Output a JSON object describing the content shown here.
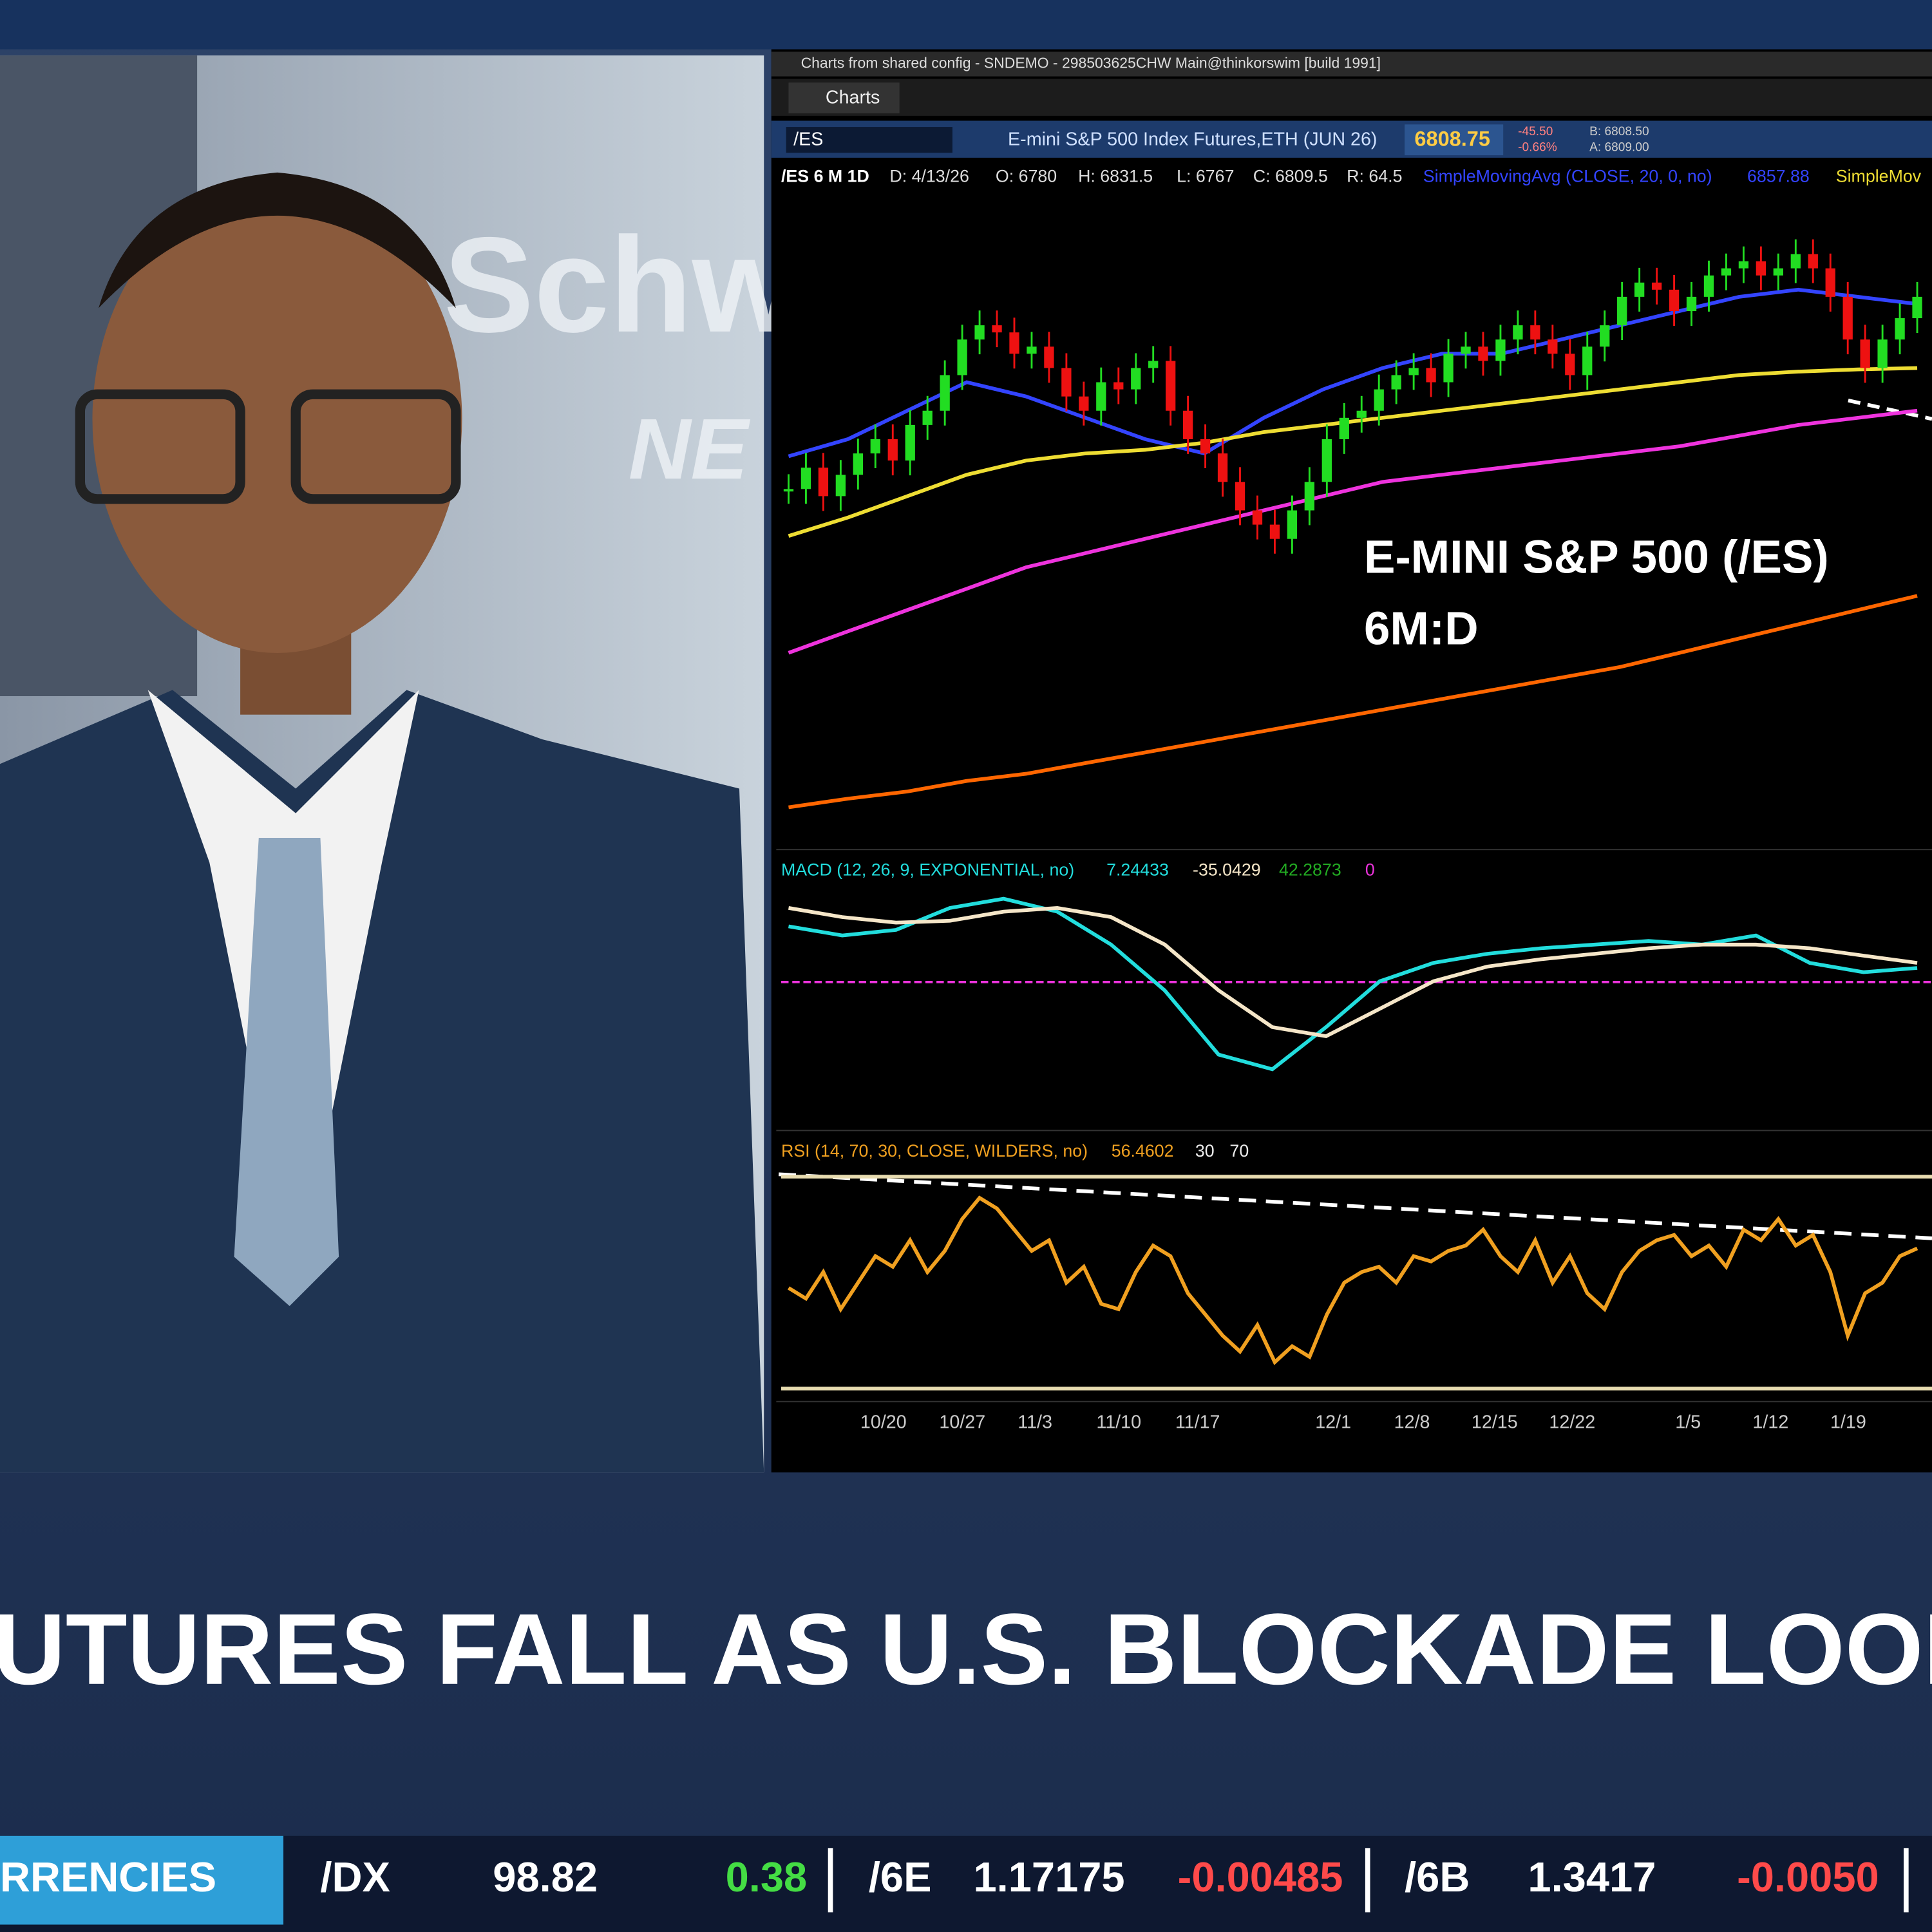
{
  "logo": {
    "brand": "Schw",
    "sub": "NE"
  },
  "window_title": "Charts from shared config - SNDEMO - 298503625CHW Main@thinkorswim [build 1991]",
  "tab": "Charts",
  "symbol_bar": {
    "symbol": "/ES",
    "description": "E-mini S&P 500 Index Futures,ETH (JUN 26)",
    "last": "6808.75",
    "change": "-45.50",
    "change_pct": "-0.66%",
    "bid": "B: 6808.50",
    "ask": "A: 6809.00"
  },
  "info_bar": [
    "/ES 6 M 1D",
    "D: 4/13/26",
    "O: 6780",
    "H: 6831.5",
    "L: 6767",
    "C: 6809.5",
    "R: 64.5",
    "SimpleMovingAvg (CLOSE, 20, 0, no)",
    "6857.88",
    "SimpleMov"
  ],
  "chart_data": [
    {
      "type": "candlestick",
      "title": "E-MINI S&P 500 (/ES)",
      "subtitle": "6M:D",
      "ylim": [
        6200,
        7100
      ],
      "up_color": "#22dd22",
      "down_color": "#ee1111",
      "values": [
        6690,
        6720,
        6680,
        6710,
        6740,
        6760,
        6730,
        6780,
        6800,
        6850,
        6900,
        6920,
        6910,
        6880,
        6890,
        6860,
        6820,
        6800,
        6840,
        6830,
        6860,
        6870,
        6800,
        6760,
        6740,
        6700,
        6660,
        6640,
        6620,
        6660,
        6700,
        6760,
        6790,
        6800,
        6830,
        6850,
        6860,
        6840,
        6880,
        6890,
        6870,
        6900,
        6920,
        6900,
        6880,
        6850,
        6890,
        6920,
        6960,
        6980,
        6970,
        6940,
        6960,
        6990,
        7000,
        7010,
        6990,
        7000,
        7020,
        7000,
        6960,
        6900,
        6860,
        6900,
        6930,
        6960
      ],
      "series": [
        {
          "color": "#3344ff",
          "values": [
            6736,
            6760,
            6800,
            6840,
            6820,
            6790,
            6760,
            6740,
            6790,
            6830,
            6860,
            6880,
            6880,
            6900,
            6920,
            6940,
            6960,
            6970,
            6960,
            6950
          ]
        },
        {
          "color": "#eedd33",
          "values": [
            6624,
            6650,
            6680,
            6710,
            6730,
            6740,
            6745,
            6755,
            6770,
            6780,
            6790,
            6800,
            6810,
            6820,
            6830,
            6840,
            6850,
            6855,
            6858,
            6860
          ]
        },
        {
          "color": "#ee33dd",
          "values": [
            6460,
            6490,
            6520,
            6550,
            6580,
            6600,
            6620,
            6640,
            6660,
            6680,
            6700,
            6710,
            6720,
            6730,
            6740,
            6750,
            6765,
            6780,
            6790,
            6800
          ]
        },
        {
          "color": "#ff6600",
          "values": [
            6243,
            6255,
            6265,
            6280,
            6290,
            6305,
            6320,
            6335,
            6350,
            6365,
            6380,
            6395,
            6410,
            6425,
            6440,
            6460,
            6480,
            6500,
            6520,
            6540
          ]
        }
      ],
      "x_labels": [
        "10/20",
        "10/27",
        "11/3",
        "11/10",
        "11/17",
        "12/1",
        "12/8",
        "12/15",
        "12/22",
        "1/5",
        "1/12",
        "1/19"
      ]
    },
    {
      "type": "line",
      "title": "MACD (12, 26, 9, EXPONENTIAL, no)",
      "readouts": [
        "7.24433",
        "-35.0429",
        "42.2873",
        "0"
      ],
      "ylim": [
        -75,
        50
      ],
      "series": [
        {
          "name": "Value",
          "color": "#22dddd",
          "values": [
            30,
            25,
            28,
            40,
            45,
            38,
            20,
            -5,
            -40,
            -48,
            -25,
            0,
            10,
            15,
            18,
            20,
            22,
            20,
            25,
            10,
            5,
            7.24
          ]
        },
        {
          "name": "Avg",
          "color": "#f5e6c8",
          "values": [
            40,
            35,
            32,
            33,
            38,
            40,
            35,
            20,
            -5,
            -25,
            -30,
            -15,
            0,
            8,
            12,
            15,
            18,
            20,
            20,
            18,
            14,
            10
          ]
        }
      ]
    },
    {
      "type": "line",
      "title": "RSI (14, 70, 30, CLOSE, WILDERS, no)",
      "readouts": [
        "56.4602",
        "30",
        "70"
      ],
      "ylim": [
        30,
        70
      ],
      "yticks": [
        30,
        70
      ],
      "color": "#f0a020",
      "values": [
        49,
        47,
        52,
        45,
        50,
        55,
        53,
        58,
        52,
        56,
        62,
        66,
        64,
        60,
        56,
        58,
        50,
        53,
        46,
        45,
        52,
        57,
        55,
        48,
        44,
        40,
        37,
        42,
        35,
        38,
        36,
        44,
        50,
        52,
        53,
        50,
        55,
        54,
        56,
        57,
        60,
        55,
        52,
        58,
        50,
        55,
        48,
        45,
        52,
        56,
        58,
        59,
        55,
        57,
        53,
        60,
        58,
        62,
        57,
        59,
        52,
        40,
        48,
        50,
        55,
        56.46
      ]
    }
  ],
  "headline": "UTURES FALL AS U.S. BLOCKADE LOOM",
  "ticker": {
    "section": "RRENCIES",
    "items": [
      {
        "symbol": "/DX",
        "price": "98.82",
        "change": "0.38"
      },
      {
        "symbol": "/6E",
        "price": "1.17175",
        "change": "-0.00485"
      },
      {
        "symbol": "/6B",
        "price": "1.3417",
        "change": "-0.0050"
      }
    ]
  }
}
